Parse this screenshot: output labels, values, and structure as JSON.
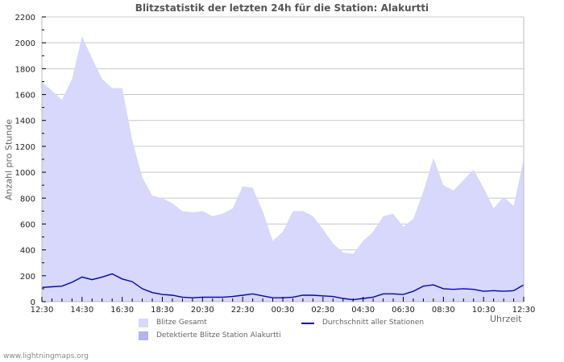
{
  "chart_data": {
    "type": "area",
    "title": "Blitzstatistik der letzten 24h für die Station: Alakurtti",
    "xlabel": "Uhrzeit",
    "ylabel": "Anzahl pro Stunde",
    "ylim": [
      0,
      2200
    ],
    "yticks": [
      0,
      200,
      400,
      600,
      800,
      1000,
      1200,
      1400,
      1600,
      1800,
      2000,
      2200
    ],
    "xtick_labels": [
      "12:30",
      "14:30",
      "16:30",
      "18:30",
      "20:30",
      "22:30",
      "00:30",
      "02:30",
      "04:30",
      "06:30",
      "08:30",
      "10:30",
      "12:30"
    ],
    "grid": true,
    "legend_position": "bottom",
    "x": [
      "12:30",
      "13:00",
      "13:30",
      "14:00",
      "14:30",
      "15:00",
      "15:30",
      "16:00",
      "16:30",
      "17:00",
      "17:30",
      "18:00",
      "18:30",
      "19:00",
      "19:30",
      "20:00",
      "20:30",
      "21:00",
      "21:30",
      "22:00",
      "22:30",
      "23:00",
      "23:30",
      "00:00",
      "00:30",
      "01:00",
      "01:30",
      "02:00",
      "02:30",
      "03:00",
      "03:30",
      "04:00",
      "04:30",
      "05:00",
      "05:30",
      "06:00",
      "06:30",
      "07:00",
      "07:30",
      "08:00",
      "08:30",
      "09:00",
      "09:30",
      "10:00",
      "10:30",
      "11:00",
      "11:30",
      "12:00",
      "12:30"
    ],
    "series": [
      {
        "name": "Blitze Gesamt",
        "kind": "area",
        "color": "#d8d8fc",
        "values": [
          1700,
          1630,
          1560,
          1720,
          2050,
          1880,
          1720,
          1650,
          1650,
          1250,
          960,
          820,
          800,
          760,
          700,
          690,
          700,
          660,
          680,
          720,
          890,
          880,
          700,
          470,
          540,
          700,
          700,
          660,
          560,
          450,
          380,
          370,
          470,
          540,
          660,
          680,
          580,
          640,
          850,
          1110,
          900,
          860,
          940,
          1020,
          880,
          720,
          810,
          740,
          1100
        ]
      },
      {
        "name": "Detektierte Blitze Station Alakurtti",
        "kind": "area",
        "color": "#b4b4f4",
        "values": [
          0,
          0,
          0,
          0,
          0,
          0,
          0,
          0,
          0,
          0,
          0,
          0,
          0,
          0,
          0,
          0,
          0,
          0,
          0,
          0,
          0,
          0,
          0,
          0,
          0,
          0,
          0,
          0,
          0,
          0,
          0,
          0,
          0,
          0,
          0,
          0,
          0,
          0,
          0,
          0,
          0,
          0,
          0,
          0,
          0,
          0,
          0,
          0,
          0
        ]
      },
      {
        "name": "Durchschnitt aller Stationen",
        "kind": "line",
        "color": "#0000cc",
        "values": [
          110,
          115,
          120,
          150,
          190,
          170,
          190,
          215,
          175,
          155,
          100,
          70,
          55,
          50,
          35,
          30,
          35,
          35,
          35,
          40,
          50,
          60,
          45,
          30,
          30,
          35,
          50,
          50,
          45,
          40,
          25,
          15,
          25,
          35,
          60,
          60,
          55,
          80,
          120,
          130,
          100,
          95,
          100,
          95,
          80,
          85,
          80,
          85,
          130
        ]
      }
    ]
  },
  "footer": "www.lightningmaps.org"
}
